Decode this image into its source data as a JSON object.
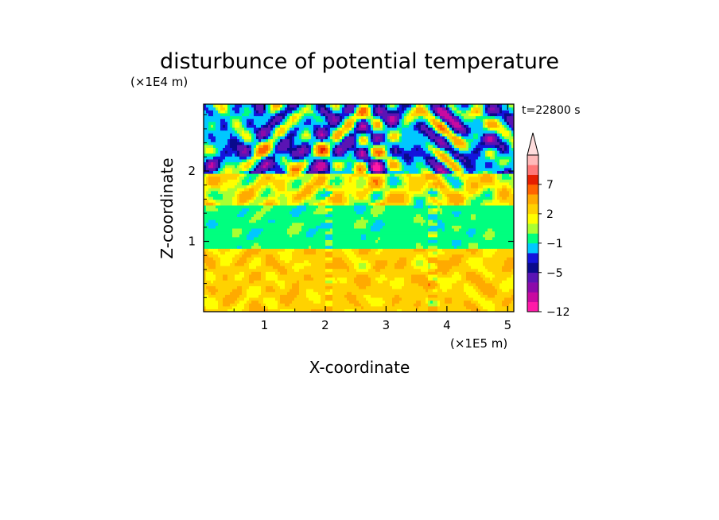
{
  "chart_data": {
    "type": "heatmap",
    "title": "disturbunce of potential temperature",
    "xlabel": "X-coordinate",
    "ylabel": "Z-coordinate",
    "x_scale_label": "(×1E5 m)",
    "y_scale_label": "(×1E4 m)",
    "time_label": "t=22800 s",
    "xlim": [
      0,
      5.1
    ],
    "ylim": [
      0,
      2.95
    ],
    "x_ticks": [
      "1",
      "2",
      "3",
      "4",
      "5"
    ],
    "y_ticks": [
      "1",
      "2"
    ],
    "x_tick_values": [
      1,
      2,
      3,
      4,
      5
    ],
    "y_tick_values": [
      1,
      2
    ],
    "colorbar": {
      "labels": [
        "7",
        "2",
        "−1",
        "−5",
        "−12"
      ],
      "label_levels": [
        7,
        2,
        -1,
        -5,
        -12
      ],
      "levels": [
        -12,
        -10,
        -8,
        -7,
        -5,
        -4,
        -3,
        -1,
        0,
        1,
        2,
        3,
        5,
        7,
        8,
        10
      ],
      "colors": [
        "#ff1aa8",
        "#c80aa0",
        "#8c0aaa",
        "#5a14b4",
        "#0a0a8c",
        "#1414dc",
        "#00c8ff",
        "#00ff7f",
        "#aaff32",
        "#ffff00",
        "#ffd200",
        "#ffaa00",
        "#ff6400",
        "#e61e00",
        "#ff7878",
        "#ffbaba"
      ],
      "extend_top_color": "#ffdddd",
      "extend": "max"
    },
    "layers": [
      {
        "z_range": [
          0,
          0.9
        ],
        "description_value": 2.5
      },
      {
        "z_range": [
          0.9,
          1.5
        ],
        "description_value": -0.5
      },
      {
        "z_range": [
          1.5,
          1.95
        ],
        "description_value": 1.5
      },
      {
        "z_range": [
          1.95,
          2.95
        ],
        "description_value": -2
      }
    ]
  }
}
